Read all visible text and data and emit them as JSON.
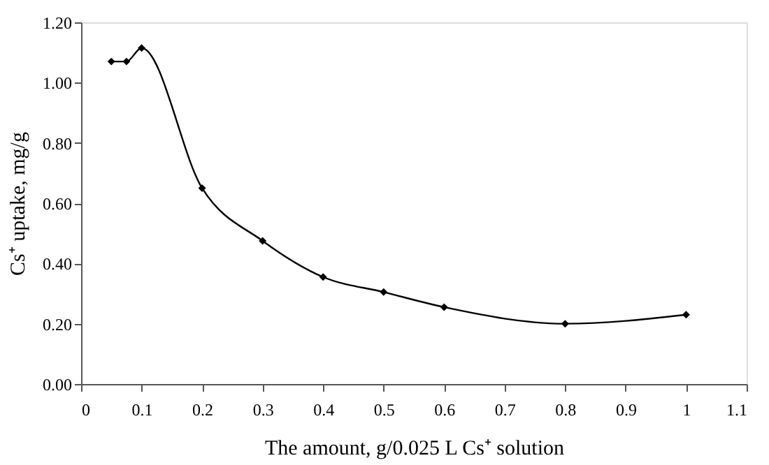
{
  "chart_data": {
    "type": "line",
    "xlabel": "The amount, g/0.025 L Cs⁺ solution",
    "ylabel": "Cs⁺ uptake, mg/g",
    "x": [
      0.05,
      0.075,
      0.1,
      0.2,
      0.3,
      0.4,
      0.5,
      0.6,
      0.8,
      1.0
    ],
    "series": [
      {
        "color": "#000000",
        "values": [
          1.07,
          1.07,
          1.115,
          0.65,
          0.475,
          0.355,
          0.305,
          0.255,
          0.2,
          0.23
        ]
      }
    ],
    "xlim": [
      0,
      1.1
    ],
    "xticks": [
      0,
      0.1,
      0.2,
      0.3,
      0.4,
      0.5,
      0.6,
      0.7,
      0.8,
      0.9,
      1,
      1.1
    ],
    "ylim": [
      0,
      1.2
    ],
    "yticks": [
      {
        "value": 0,
        "label": "0.00"
      },
      {
        "value": 0.2,
        "label": "0.20"
      },
      {
        "value": 0.4,
        "label": "0.40"
      },
      {
        "value": 0.6,
        "label": "0.60"
      },
      {
        "value": 0.8,
        "label": "0.80"
      },
      {
        "value": 1.0,
        "label": "1.00"
      },
      {
        "value": 1.2,
        "label": "1.20"
      }
    ],
    "grid": false,
    "marker": "diamond",
    "line_style": "solid"
  }
}
